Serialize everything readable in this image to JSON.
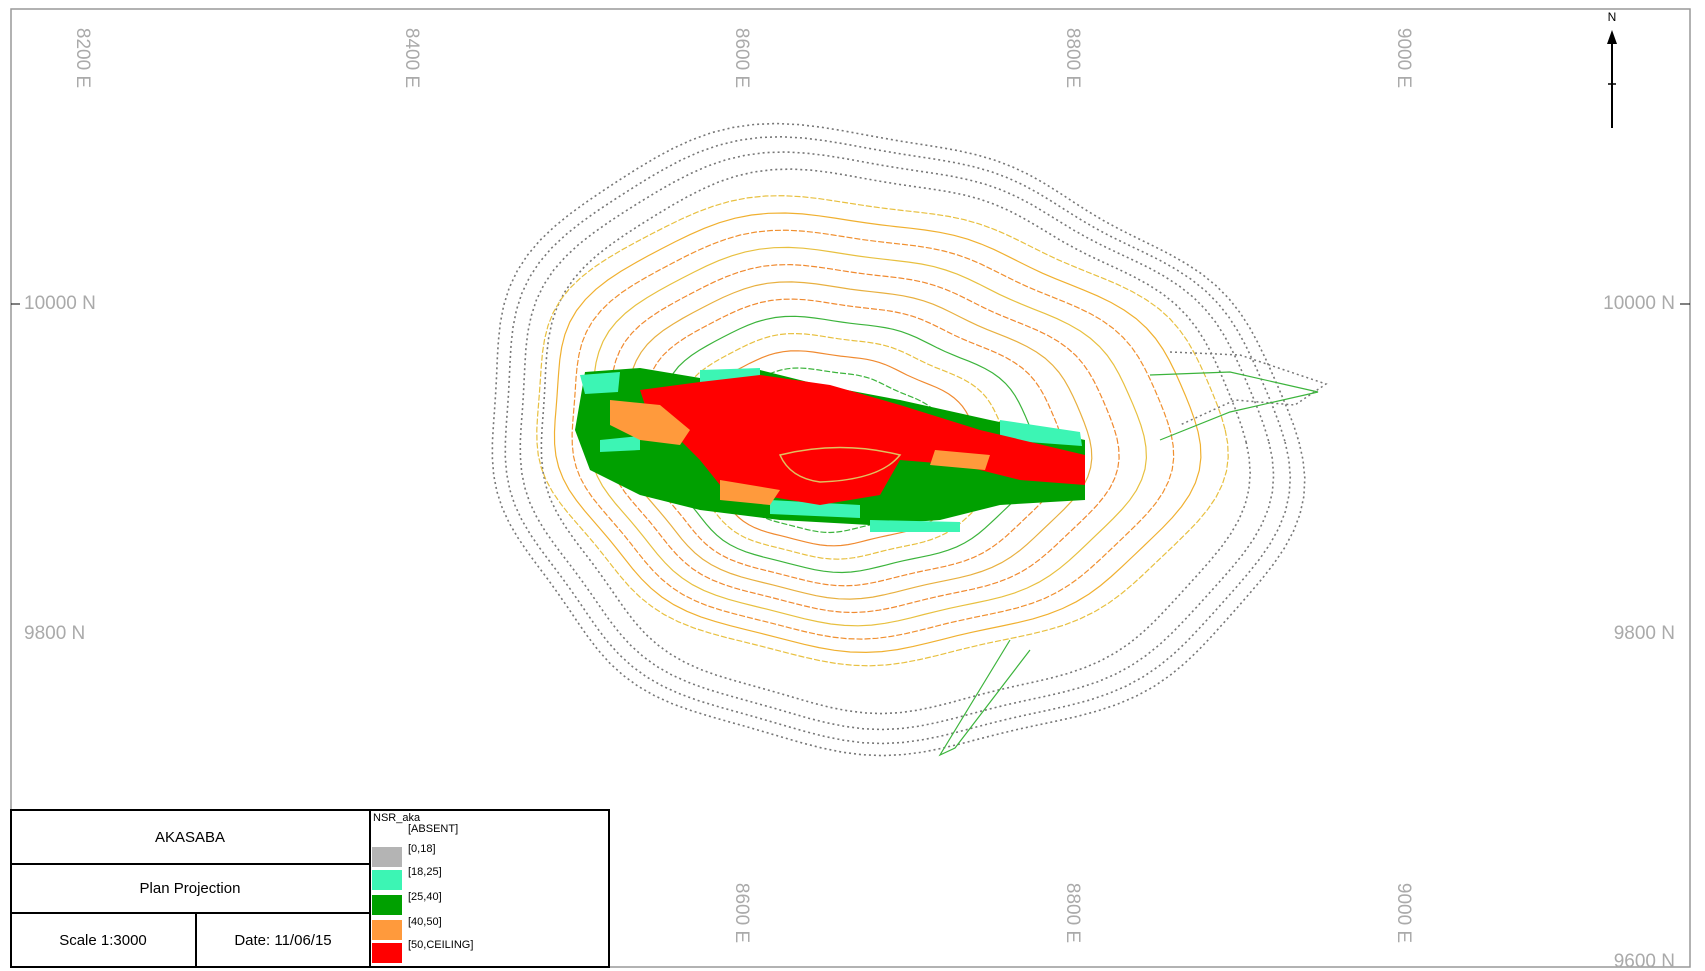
{
  "north_arrow": "N",
  "grid_labels": {
    "easting_top": [
      "8200 E",
      "8400 E",
      "8600 E",
      "8800 E",
      "9000 E"
    ],
    "easting_bottom": [
      "8600 E",
      "8800 E",
      "9000 E"
    ],
    "northing_left": [
      "10000 N",
      "9800 N"
    ],
    "northing_right": [
      "10000 N",
      "9800 N",
      "9600 N"
    ]
  },
  "title_block": {
    "project": "AKASABA",
    "view": "Plan Projection",
    "scale": "Scale 1:3000",
    "date": "Date: 11/06/15"
  },
  "legend": {
    "title": "NSR_aka",
    "entries": [
      {
        "label": "[ABSENT]",
        "color": "#ffffff"
      },
      {
        "label": "[0,18]",
        "color": "#b4b4b4"
      },
      {
        "label": "[18,25]",
        "color": "#3cf5b4"
      },
      {
        "label": "[25,40]",
        "color": "#00a000"
      },
      {
        "label": "[40,50]",
        "color": "#ff9a3c"
      },
      {
        "label": "[50,CEILING]",
        "color": "#ff0000"
      }
    ]
  }
}
